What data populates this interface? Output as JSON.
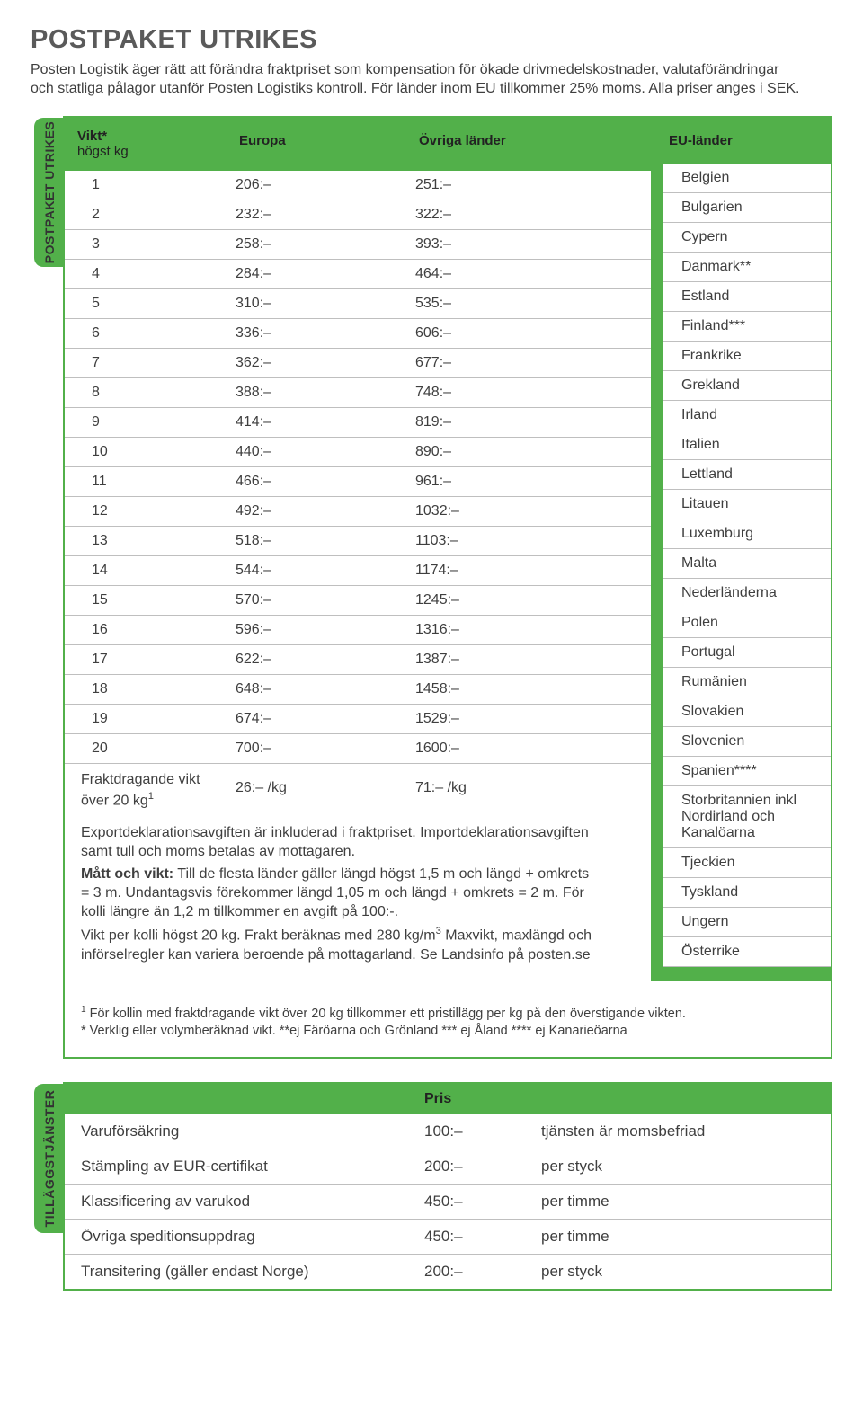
{
  "page": {
    "title": "POSTPAKET UTRIKES",
    "intro": "Posten Logistik äger rätt att förändra fraktpriset som kompensation för ökade drivmedelskostnader, valutaförändringar och statliga pålagor utanför Posten Logistiks kontroll. För länder inom EU tillkommer 25% moms. Alla priser anges i SEK."
  },
  "colors": {
    "accent": "#52b04a",
    "text": "#3f3f3f",
    "border": "#bfbfbf",
    "background": "#ffffff"
  },
  "sideLabels": {
    "main": "POSTPAKET UTRIKES",
    "services": "TILLÄGGSTJÄNSTER"
  },
  "mainTable": {
    "headers": {
      "vikt_l1": "Vikt*",
      "vikt_l2": "högst kg",
      "europa": "Europa",
      "ovriga": "Övriga länder",
      "eu": "EU-länder"
    },
    "rows": [
      {
        "w": "1",
        "eu": "206:–",
        "ov": "251:–"
      },
      {
        "w": "2",
        "eu": "232:–",
        "ov": "322:–"
      },
      {
        "w": "3",
        "eu": "258:–",
        "ov": "393:–"
      },
      {
        "w": "4",
        "eu": "284:–",
        "ov": "464:–"
      },
      {
        "w": "5",
        "eu": "310:–",
        "ov": "535:–"
      },
      {
        "w": "6",
        "eu": "336:–",
        "ov": "606:–"
      },
      {
        "w": "7",
        "eu": "362:–",
        "ov": "677:–"
      },
      {
        "w": "8",
        "eu": "388:–",
        "ov": "748:–"
      },
      {
        "w": "9",
        "eu": "414:–",
        "ov": "819:–"
      },
      {
        "w": "10",
        "eu": "440:–",
        "ov": "890:–"
      },
      {
        "w": "11",
        "eu": "466:–",
        "ov": "961:–"
      },
      {
        "w": "12",
        "eu": "492:–",
        "ov": "1032:–"
      },
      {
        "w": "13",
        "eu": "518:–",
        "ov": "1103:–"
      },
      {
        "w": "14",
        "eu": "544:–",
        "ov": "1174:–"
      },
      {
        "w": "15",
        "eu": "570:–",
        "ov": "1245:–"
      },
      {
        "w": "16",
        "eu": "596:–",
        "ov": "1316:–"
      },
      {
        "w": "17",
        "eu": "622:–",
        "ov": "1387:–"
      },
      {
        "w": "18",
        "eu": "648:–",
        "ov": "1458:–"
      },
      {
        "w": "19",
        "eu": "674:–",
        "ov": "1529:–"
      },
      {
        "w": "20",
        "eu": "700:–",
        "ov": "1600:–"
      }
    ],
    "fraktRow": {
      "label_l1": "Fraktdragande vikt",
      "label_l2": "över 20 kg",
      "label_sup": "1",
      "europa": "26:– /kg",
      "ovriga": "71:– /kg"
    },
    "euCountries": [
      "Belgien",
      "Bulgarien",
      "Cypern",
      "Danmark**",
      "Estland",
      "Finland***",
      "Frankrike",
      "Grekland",
      "Irland",
      "Italien",
      "Lettland",
      "Litauen",
      "Luxemburg",
      "Malta",
      "Nederländerna",
      "Polen",
      "Portugal",
      "Rumänien",
      "Slovakien",
      "Slovenien",
      "Spanien****",
      "Storbritannien inkl Nordirland och Kanalöarna",
      "Tjeckien",
      "Tyskland",
      "Ungern",
      "Österrike"
    ],
    "notes": {
      "p1": "Exportdeklarationsavgiften är inkluderad i fraktpriset. Importdeklarationsavgiften samt tull och moms betalas av mottagaren.",
      "p2_bold": "Mått och vikt:",
      "p2": " Till de flesta länder gäller längd högst 1,5 m och längd + omkrets = 3 m. Undantagsvis förekommer längd 1,05 m och längd + omkrets = 2 m. För kolli längre än 1,2 m tillkommer en avgift på 100:-.",
      "p3_a": "Vikt per kolli högst 20 kg. Frakt beräknas med 280 kg/m",
      "p3_sup": "3",
      "p3_b": " Maxvikt, maxlängd och införselregler kan variera beroende på mottagarland. Se Landsinfo på posten.se"
    },
    "footnotes": {
      "f1_sup": "1",
      "f1": " För kollin med fraktdragande vikt över 20 kg tillkommer ett pristillägg per kg på den överstigande vikten.",
      "f2": "* Verklig eller volymberäknad vikt. **ej Färöarna och Grönland *** ej Åland **** ej Kanarieöarna"
    }
  },
  "servicesTable": {
    "header": {
      "pris": "Pris"
    },
    "rows": [
      {
        "name": "Varuförsäkring",
        "price": "100:–",
        "note": "tjänsten är momsbefriad"
      },
      {
        "name": "Stämpling av EUR-certifikat",
        "price": "200:–",
        "note": "per styck"
      },
      {
        "name": "Klassificering av varukod",
        "price": "450:–",
        "note": "per timme"
      },
      {
        "name": "Övriga speditionsuppdrag",
        "price": "450:–",
        "note": "per timme"
      },
      {
        "name": "Transitering (gäller endast Norge)",
        "price": "200:–",
        "note": "per styck"
      }
    ]
  }
}
